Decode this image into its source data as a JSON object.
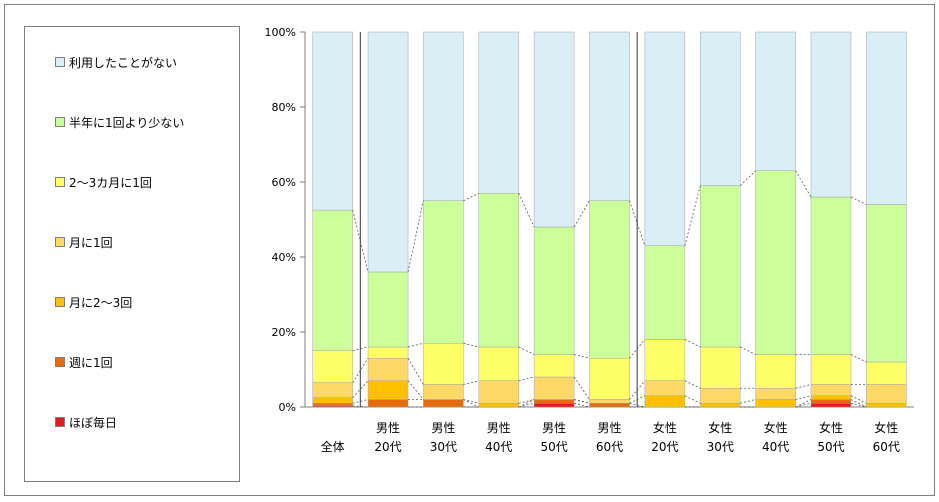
{
  "chart_data": {
    "type": "bar",
    "stacked": true,
    "percent": true,
    "categories": [
      [
        "全体"
      ],
      [
        "男性",
        "20代"
      ],
      [
        "男性",
        "30代"
      ],
      [
        "男性",
        "40代"
      ],
      [
        "男性",
        "50代"
      ],
      [
        "男性",
        "60代"
      ],
      [
        "女性",
        "20代"
      ],
      [
        "女性",
        "30代"
      ],
      [
        "女性",
        "40代"
      ],
      [
        "女性",
        "50代"
      ],
      [
        "女性",
        "60代"
      ]
    ],
    "series": [
      {
        "name": "ほぼ毎日",
        "color": "#e41a1c",
        "values": [
          0.3,
          0,
          0,
          0,
          1,
          0,
          0,
          0,
          0,
          1,
          0
        ]
      },
      {
        "name": "週に1回",
        "color": "#e46c0a",
        "values": [
          0.7,
          2,
          2,
          0,
          1,
          1,
          0,
          0,
          0,
          1,
          0
        ]
      },
      {
        "name": "月に2〜3回",
        "color": "#ffc000",
        "values": [
          1.5,
          5,
          0,
          1,
          0,
          0,
          3,
          1,
          2,
          1,
          1
        ]
      },
      {
        "name": "月に1回",
        "color": "#ffd966",
        "values": [
          4,
          6,
          4,
          6,
          6,
          1,
          4,
          4,
          3,
          3,
          5
        ]
      },
      {
        "name": "2〜3カ月に1回",
        "color": "#ffff66",
        "values": [
          8.5,
          3,
          11,
          9,
          6,
          11,
          11,
          11,
          9,
          8,
          6
        ]
      },
      {
        "name": "半年に1回より少ない",
        "color": "#ccff99",
        "values": [
          37.5,
          20,
          38,
          41,
          34,
          42,
          25,
          43,
          49,
          42,
          42
        ]
      },
      {
        "name": "利用したことがない",
        "color": "#d9eef5",
        "values": [
          47.5,
          64,
          45,
          43,
          52,
          45,
          57,
          41,
          37,
          44,
          46
        ]
      }
    ],
    "ylim": [
      0,
      100
    ],
    "y_ticks": [
      "0%",
      "20%",
      "40%",
      "60%",
      "80%",
      "100%"
    ],
    "series_lines": true,
    "group_separators_after": [
      0,
      5
    ],
    "legend_position": "left"
  }
}
